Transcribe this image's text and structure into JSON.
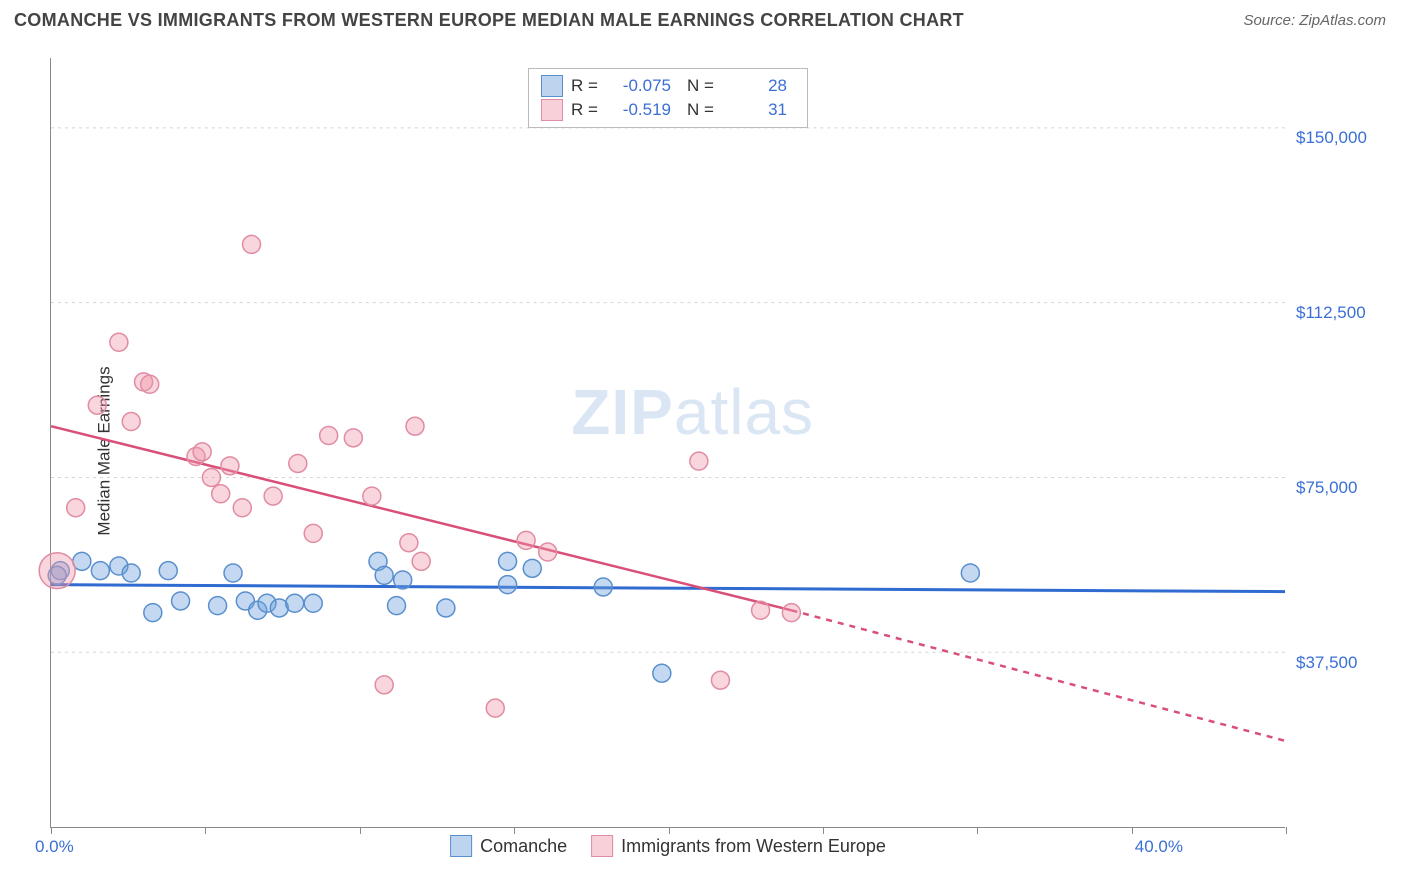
{
  "header": {
    "title": "COMANCHE VS IMMIGRANTS FROM WESTERN EUROPE MEDIAN MALE EARNINGS CORRELATION CHART",
    "source": "Source: ZipAtlas.com"
  },
  "watermark": {
    "bold": "ZIP",
    "light": "atlas"
  },
  "chart": {
    "type": "scatter",
    "y_axis_title": "Median Male Earnings",
    "background_color": "#ffffff",
    "grid_color": "#d4d4d4",
    "x": {
      "min": 0.0,
      "max": 40.0,
      "min_label": "0.0%",
      "max_label": "40.0%",
      "ticks": [
        0,
        5,
        10,
        15,
        20,
        25,
        30,
        35,
        40
      ]
    },
    "y": {
      "min": 0,
      "max": 165000,
      "gridlines": [
        37500,
        75000,
        112500,
        150000
      ],
      "labels": [
        "$37,500",
        "$75,000",
        "$112,500",
        "$150,000"
      ]
    },
    "series": [
      {
        "name": "Comanche",
        "color_fill": "rgba(108,160,220,0.40)",
        "color_stroke": "#5a8fce",
        "marker_radius": 9,
        "R_label": "R =",
        "R": "-0.075",
        "N_label": "N =",
        "N": "28",
        "trend": {
          "solid": [
            [
              0,
              52000
            ],
            [
              40,
              50500
            ]
          ],
          "dashed": null,
          "stroke": "#2f6bd0",
          "width": 3
        },
        "points": [
          [
            0.3,
            55000
          ],
          [
            1.0,
            57000
          ],
          [
            1.6,
            55000
          ],
          [
            2.2,
            56000
          ],
          [
            2.6,
            54500
          ],
          [
            3.3,
            46000
          ],
          [
            3.8,
            55000
          ],
          [
            4.2,
            48500
          ],
          [
            5.4,
            47500
          ],
          [
            5.9,
            54500
          ],
          [
            6.3,
            48500
          ],
          [
            6.7,
            46500
          ],
          [
            7.0,
            48000
          ],
          [
            7.4,
            47000
          ],
          [
            7.9,
            48000
          ],
          [
            8.5,
            48000
          ],
          [
            10.6,
            57000
          ],
          [
            10.8,
            54000
          ],
          [
            11.4,
            53000
          ],
          [
            11.2,
            47500
          ],
          [
            12.8,
            47000
          ],
          [
            14.8,
            57000
          ],
          [
            14.8,
            52000
          ],
          [
            15.6,
            55500
          ],
          [
            17.9,
            51500
          ],
          [
            19.8,
            33000
          ],
          [
            29.8,
            54500
          ],
          [
            0.2,
            54000
          ]
        ]
      },
      {
        "name": "Immigrants from Western Europe",
        "color_fill": "rgba(240,150,170,0.40)",
        "color_stroke": "#e08ca2",
        "marker_radius": 9,
        "R_label": "R =",
        "R": "-0.519",
        "N_label": "N =",
        "N": "31",
        "trend": {
          "solid": [
            [
              0,
              86000
            ],
            [
              24,
              46500
            ]
          ],
          "dashed": [
            [
              24,
              46500
            ],
            [
              40,
              18500
            ]
          ],
          "stroke": "#d94f78",
          "width": 2.5
        },
        "points": [
          [
            0.2,
            55000,
            18
          ],
          [
            0.8,
            68500
          ],
          [
            1.5,
            90500
          ],
          [
            2.2,
            104000
          ],
          [
            2.6,
            87000
          ],
          [
            3.0,
            95500
          ],
          [
            3.2,
            95000
          ],
          [
            4.7,
            79500
          ],
          [
            4.9,
            80500
          ],
          [
            5.2,
            75000
          ],
          [
            5.5,
            71500
          ],
          [
            5.8,
            77500
          ],
          [
            6.2,
            68500
          ],
          [
            6.5,
            125000
          ],
          [
            7.2,
            71000
          ],
          [
            8.0,
            78000
          ],
          [
            8.5,
            63000
          ],
          [
            9.0,
            84000
          ],
          [
            9.8,
            83500
          ],
          [
            10.4,
            71000
          ],
          [
            10.8,
            30500
          ],
          [
            11.6,
            61000
          ],
          [
            11.8,
            86000
          ],
          [
            12.0,
            57000
          ],
          [
            14.4,
            25500
          ],
          [
            15.4,
            61500
          ],
          [
            16.1,
            59000
          ],
          [
            21.0,
            78500
          ],
          [
            21.7,
            31500
          ],
          [
            23.0,
            46500
          ],
          [
            24.0,
            46000
          ]
        ]
      }
    ],
    "bottom_legend": [
      {
        "label": "Comanche",
        "swatch": "blue"
      },
      {
        "label": "Immigrants from Western Europe",
        "swatch": "pink"
      }
    ]
  }
}
